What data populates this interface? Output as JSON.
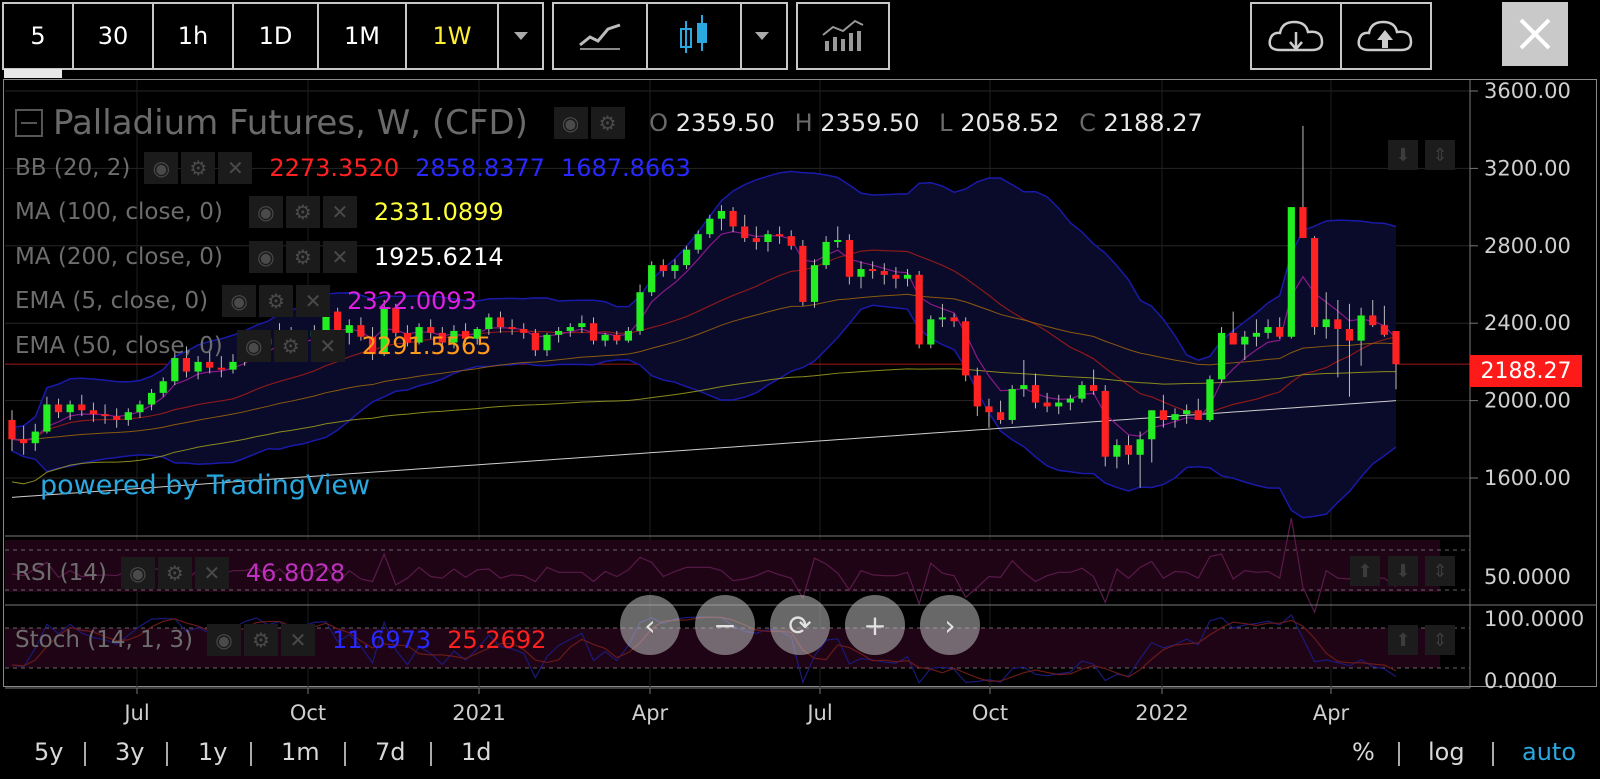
{
  "toolbar": {
    "intervals": [
      "5",
      "30",
      "1h",
      "1D",
      "1M",
      "1W"
    ],
    "active_interval": "1W",
    "close_label": "✕"
  },
  "legend": {
    "title": "Palladium Futures, W, (CFD)",
    "o_label": "O",
    "o_value": "2359.50",
    "h_label": "H",
    "h_value": "2359.50",
    "l_label": "L",
    "l_value": "2058.52",
    "c_label": "C",
    "c_value": "2188.27"
  },
  "indicators": [
    {
      "label": "BB (20, 2)",
      "values": [
        {
          "text": "2273.3520",
          "color": "#ff2020"
        },
        {
          "text": "2858.8377",
          "color": "#2828ff"
        },
        {
          "text": "1687.8663",
          "color": "#2828ff"
        }
      ]
    },
    {
      "label": "MA (100, close, 0)",
      "values": [
        {
          "text": "2331.0899",
          "color": "#ffff3a"
        }
      ]
    },
    {
      "label": "MA (200, close, 0)",
      "values": [
        {
          "text": "1925.6214",
          "color": "#ffffff"
        }
      ]
    },
    {
      "label": "EMA (5, close, 0)",
      "values": [
        {
          "text": "2322.0093",
          "color": "#e020e0"
        }
      ]
    },
    {
      "label": "EMA (50, close, 0)",
      "values": [
        {
          "text": "2291.5565",
          "color": "#ff9a1a"
        }
      ]
    }
  ],
  "rsi": {
    "label": "RSI (14)",
    "value": "46.8028",
    "color": "#c030c0"
  },
  "stoch": {
    "label": "Stoch (14, 1, 3)",
    "k": "11.6973",
    "d": "25.2692",
    "k_color": "#2828ff",
    "d_color": "#ff2020"
  },
  "last_price": "2188.27",
  "watermark": "powered by TradingView",
  "ranges": [
    "5y",
    "3y",
    "1y",
    "1m",
    "7d",
    "1d"
  ],
  "scale_options": [
    "%",
    "log",
    "auto"
  ],
  "colors": {
    "up": "#22ee22",
    "down": "#ff2222",
    "bb_band": "#1a1aaa",
    "accent": "#2aa8e0"
  },
  "chart_data": {
    "type": "candlestick",
    "title": "Palladium Futures, W, (CFD)",
    "price_axis_ticks": [
      "3600.00",
      "3200.00",
      "2800.00",
      "2400.00",
      "2000.00",
      "1600.00"
    ],
    "ylim": [
      1380,
      3600
    ],
    "time_axis_ticks": [
      "Jul",
      "Oct",
      "2021",
      "Apr",
      "Jul",
      "Oct",
      "2022",
      "Apr"
    ],
    "rsi_axis_ticks": [
      "50.0000"
    ],
    "stoch_axis_ticks": [
      "100.0000",
      "0.0000"
    ],
    "candles": [
      [
        1900,
        1950,
        1740,
        1800
      ],
      [
        1800,
        1870,
        1720,
        1780
      ],
      [
        1780,
        1880,
        1740,
        1840
      ],
      [
        1840,
        2020,
        1830,
        1980
      ],
      [
        1980,
        2010,
        1910,
        1940
      ],
      [
        1940,
        2000,
        1900,
        1980
      ],
      [
        1980,
        2030,
        1920,
        1950
      ],
      [
        1950,
        1990,
        1890,
        1930
      ],
      [
        1930,
        1980,
        1880,
        1920
      ],
      [
        1920,
        1960,
        1860,
        1900
      ],
      [
        1900,
        1960,
        1870,
        1940
      ],
      [
        1940,
        2000,
        1910,
        1980
      ],
      [
        1980,
        2060,
        1950,
        2040
      ],
      [
        2040,
        2120,
        2020,
        2100
      ],
      [
        2100,
        2250,
        2080,
        2220
      ],
      [
        2220,
        2280,
        2120,
        2150
      ],
      [
        2150,
        2230,
        2110,
        2200
      ],
      [
        2200,
        2260,
        2140,
        2170
      ],
      [
        2170,
        2230,
        2120,
        2160
      ],
      [
        2160,
        2240,
        2140,
        2200
      ],
      [
        2200,
        2270,
        2180,
        2240
      ],
      [
        2240,
        2340,
        2220,
        2320
      ],
      [
        2320,
        2360,
        2270,
        2290
      ],
      [
        2290,
        2400,
        2280,
        2350
      ],
      [
        2350,
        2380,
        2250,
        2280
      ],
      [
        2280,
        2360,
        2240,
        2330
      ],
      [
        2330,
        2390,
        2300,
        2360
      ],
      [
        2360,
        2500,
        2340,
        2460
      ],
      [
        2460,
        2480,
        2320,
        2350
      ],
      [
        2350,
        2420,
        2290,
        2390
      ],
      [
        2390,
        2430,
        2310,
        2330
      ],
      [
        2330,
        2380,
        2210,
        2240
      ],
      [
        2240,
        2520,
        2230,
        2480
      ],
      [
        2480,
        2500,
        2330,
        2350
      ],
      [
        2350,
        2390,
        2280,
        2300
      ],
      [
        2300,
        2400,
        2290,
        2380
      ],
      [
        2380,
        2420,
        2320,
        2350
      ],
      [
        2350,
        2380,
        2250,
        2300
      ],
      [
        2300,
        2390,
        2270,
        2360
      ],
      [
        2360,
        2400,
        2300,
        2320
      ],
      [
        2320,
        2380,
        2290,
        2370
      ],
      [
        2370,
        2450,
        2340,
        2430
      ],
      [
        2430,
        2460,
        2350,
        2380
      ],
      [
        2380,
        2420,
        2340,
        2370
      ],
      [
        2370,
        2400,
        2320,
        2350
      ],
      [
        2350,
        2370,
        2230,
        2260
      ],
      [
        2260,
        2350,
        2230,
        2340
      ],
      [
        2340,
        2380,
        2300,
        2360
      ],
      [
        2360,
        2400,
        2330,
        2380
      ],
      [
        2380,
        2440,
        2350,
        2400
      ],
      [
        2400,
        2430,
        2290,
        2310
      ],
      [
        2310,
        2350,
        2280,
        2340
      ],
      [
        2340,
        2360,
        2290,
        2310
      ],
      [
        2310,
        2380,
        2300,
        2360
      ],
      [
        2360,
        2600,
        2340,
        2560
      ],
      [
        2560,
        2720,
        2540,
        2700
      ],
      [
        2700,
        2730,
        2640,
        2670
      ],
      [
        2670,
        2730,
        2630,
        2700
      ],
      [
        2700,
        2800,
        2680,
        2780
      ],
      [
        2780,
        2880,
        2760,
        2860
      ],
      [
        2860,
        2960,
        2840,
        2940
      ],
      [
        2940,
        3010,
        2880,
        2980
      ],
      [
        2980,
        3000,
        2870,
        2900
      ],
      [
        2900,
        2960,
        2820,
        2840
      ],
      [
        2840,
        2900,
        2780,
        2820
      ],
      [
        2820,
        2880,
        2770,
        2860
      ],
      [
        2860,
        2900,
        2810,
        2850
      ],
      [
        2850,
        2880,
        2780,
        2800
      ],
      [
        2800,
        2830,
        2490,
        2510
      ],
      [
        2510,
        2730,
        2480,
        2700
      ],
      [
        2700,
        2850,
        2680,
        2820
      ],
      [
        2820,
        2900,
        2790,
        2830
      ],
      [
        2830,
        2860,
        2600,
        2640
      ],
      [
        2640,
        2720,
        2580,
        2680
      ],
      [
        2680,
        2720,
        2630,
        2670
      ],
      [
        2670,
        2710,
        2600,
        2650
      ],
      [
        2650,
        2690,
        2580,
        2630
      ],
      [
        2630,
        2680,
        2590,
        2650
      ],
      [
        2650,
        2670,
        2270,
        2290
      ],
      [
        2290,
        2440,
        2270,
        2420
      ],
      [
        2420,
        2500,
        2380,
        2430
      ],
      [
        2430,
        2450,
        2380,
        2410
      ],
      [
        2410,
        2430,
        2100,
        2130
      ],
      [
        2130,
        2170,
        1920,
        1970
      ],
      [
        1970,
        2010,
        1860,
        1940
      ],
      [
        1940,
        2000,
        1880,
        1900
      ],
      [
        1900,
        2080,
        1880,
        2060
      ],
      [
        2060,
        2210,
        2020,
        2080
      ],
      [
        2080,
        2140,
        1960,
        1990
      ],
      [
        1990,
        2040,
        1940,
        1970
      ],
      [
        1970,
        2030,
        1930,
        1990
      ],
      [
        1990,
        2030,
        1950,
        2010
      ],
      [
        2010,
        2100,
        1990,
        2080
      ],
      [
        2080,
        2160,
        2030,
        2050
      ],
      [
        2050,
        2080,
        1660,
        1710
      ],
      [
        1710,
        1800,
        1650,
        1770
      ],
      [
        1770,
        1820,
        1670,
        1720
      ],
      [
        1720,
        1840,
        1550,
        1800
      ],
      [
        1800,
        1950,
        1680,
        1950
      ],
      [
        1950,
        2030,
        1860,
        1900
      ],
      [
        1900,
        1960,
        1860,
        1930
      ],
      [
        1930,
        1980,
        1880,
        1950
      ],
      [
        1950,
        2010,
        1900,
        1900
      ],
      [
        1900,
        2130,
        1890,
        2110
      ],
      [
        2110,
        2380,
        2090,
        2350
      ],
      [
        2350,
        2460,
        2290,
        2290
      ],
      [
        2290,
        2360,
        2210,
        2330
      ],
      [
        2330,
        2420,
        2280,
        2350
      ],
      [
        2350,
        2420,
        2320,
        2380
      ],
      [
        2380,
        2430,
        2320,
        2330
      ],
      [
        2330,
        3000,
        2320,
        3000
      ],
      [
        3000,
        3420,
        2840,
        2840
      ],
      [
        2840,
        2850,
        2340,
        2380
      ],
      [
        2380,
        2560,
        2320,
        2420
      ],
      [
        2420,
        2520,
        2120,
        2370
      ],
      [
        2370,
        2500,
        2020,
        2310
      ],
      [
        2310,
        2480,
        2180,
        2440
      ],
      [
        2440,
        2520,
        2380,
        2390
      ],
      [
        2390,
        2490,
        2330,
        2340
      ],
      [
        2359.5,
        2359.5,
        2058.52,
        2188.27
      ]
    ],
    "series": [
      {
        "name": "BB (20, 2)"
      },
      {
        "name": "MA (100, close, 0)"
      },
      {
        "name": "MA (200, close, 0)"
      },
      {
        "name": "EMA (5, close, 0)"
      },
      {
        "name": "EMA (50, close, 0)"
      }
    ]
  }
}
